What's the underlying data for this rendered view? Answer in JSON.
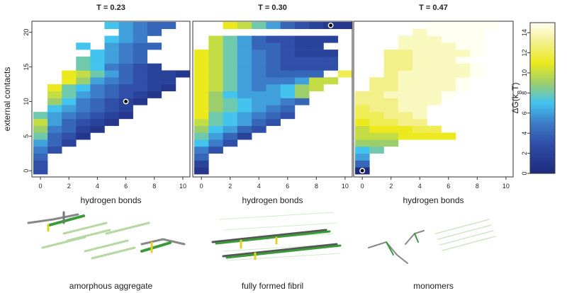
{
  "chart_data": [
    {
      "type": "heatmap",
      "title": "T = 0.23",
      "xlabel": "hydrogen bonds",
      "ylabel": "external contacts",
      "caption": "amorphous aggregate",
      "x": [
        0,
        1,
        2,
        3,
        4,
        5,
        6,
        7,
        8,
        9,
        10
      ],
      "y": [
        0,
        1,
        2,
        3,
        4,
        5,
        6,
        7,
        8,
        9,
        10,
        11,
        12,
        13,
        14,
        15,
        16,
        17,
        18,
        19,
        20,
        21
      ],
      "xlim": [
        -0.6,
        10.5
      ],
      "ylim": [
        -0.9,
        21.6
      ],
      "xticks": [
        0,
        2,
        4,
        6,
        8,
        10
      ],
      "yticks": [
        0,
        5,
        10,
        15,
        20
      ],
      "marker": [
        6,
        10
      ],
      "z": [
        [
          3,
          null,
          null,
          null,
          null,
          null,
          null,
          null,
          null,
          null,
          null
        ],
        [
          3,
          null,
          null,
          null,
          null,
          null,
          null,
          null,
          null,
          null,
          null
        ],
        [
          4,
          null,
          null,
          null,
          null,
          null,
          null,
          null,
          null,
          null,
          null
        ],
        [
          5,
          3,
          null,
          null,
          null,
          null,
          null,
          null,
          null,
          null,
          null
        ],
        [
          6,
          4,
          2,
          null,
          null,
          null,
          null,
          null,
          null,
          null,
          null
        ],
        [
          8,
          4,
          3,
          1,
          null,
          null,
          null,
          null,
          null,
          null,
          null
        ],
        [
          9,
          5,
          4,
          2,
          1,
          null,
          null,
          null,
          null,
          null,
          null
        ],
        [
          10,
          6,
          4,
          3,
          2,
          1,
          null,
          null,
          null,
          null,
          null
        ],
        [
          8,
          6,
          5,
          4,
          3,
          2,
          1,
          null,
          null,
          null,
          null
        ],
        [
          null,
          7,
          6,
          5,
          4,
          3,
          2,
          null,
          null,
          null,
          null
        ],
        [
          null,
          9,
          7,
          5,
          4,
          3,
          2,
          1,
          null,
          null,
          null
        ],
        [
          null,
          10,
          8,
          6,
          5,
          4,
          3,
          2,
          1,
          null,
          null
        ],
        [
          null,
          11,
          8,
          7,
          5,
          4,
          3,
          3,
          2,
          1,
          null
        ],
        [
          null,
          null,
          11,
          9,
          6,
          5,
          4,
          3,
          2,
          2,
          null
        ],
        [
          null,
          null,
          11,
          10,
          8,
          6,
          4,
          3,
          2,
          2,
          1
        ],
        [
          null,
          null,
          null,
          8,
          7,
          5,
          4,
          3,
          2,
          null,
          null
        ],
        [
          null,
          null,
          null,
          8,
          7,
          6,
          5,
          4,
          null,
          null,
          null
        ],
        [
          null,
          null,
          null,
          null,
          7,
          6,
          5,
          4,
          null,
          null,
          null
        ],
        [
          null,
          null,
          null,
          7,
          null,
          6,
          5,
          4,
          4,
          null,
          null
        ],
        [
          null,
          null,
          null,
          null,
          null,
          7,
          6,
          5,
          null,
          null,
          null
        ],
        [
          null,
          null,
          null,
          null,
          null,
          null,
          6,
          5,
          4,
          null,
          null
        ],
        [
          null,
          null,
          null,
          null,
          null,
          7,
          6,
          5,
          4,
          4,
          null
        ]
      ]
    },
    {
      "type": "heatmap",
      "title": "T = 0.30",
      "xlabel": "hydrogen bonds",
      "caption": "fully formed fibril",
      "x": [
        0,
        1,
        2,
        3,
        4,
        5,
        6,
        7,
        8,
        9,
        10
      ],
      "y": [
        0,
        1,
        2,
        3,
        4,
        5,
        6,
        7,
        8,
        9,
        10,
        11,
        12,
        13,
        14,
        15,
        16,
        17,
        18,
        19,
        20,
        21
      ],
      "xlim": [
        -0.6,
        10.5
      ],
      "ylim": [
        -0.9,
        21.6
      ],
      "xticks": [
        0,
        2,
        4,
        6,
        8,
        10
      ],
      "marker": [
        9,
        21
      ],
      "z": [
        [
          1,
          null,
          null,
          null,
          null,
          null,
          null,
          null,
          null,
          null,
          null
        ],
        [
          2,
          null,
          null,
          null,
          null,
          null,
          null,
          null,
          null,
          null,
          null
        ],
        [
          4,
          null,
          null,
          null,
          null,
          null,
          null,
          null,
          null,
          null,
          null
        ],
        [
          5,
          3,
          null,
          null,
          null,
          null,
          null,
          null,
          null,
          null,
          null
        ],
        [
          7,
          5,
          3,
          null,
          null,
          null,
          null,
          null,
          null,
          null,
          null
        ],
        [
          8,
          6,
          4,
          2,
          null,
          null,
          null,
          null,
          null,
          null,
          null
        ],
        [
          9,
          7,
          6,
          4,
          3,
          null,
          null,
          null,
          null,
          null,
          null
        ],
        [
          10,
          8,
          7,
          6,
          4,
          3,
          null,
          null,
          null,
          null,
          null
        ],
        [
          11,
          8,
          7,
          6,
          5,
          4,
          3,
          null,
          null,
          null,
          null
        ],
        [
          11,
          9,
          8,
          7,
          6,
          5,
          4,
          null,
          null,
          null,
          null
        ],
        [
          11,
          9,
          8,
          7,
          6,
          6,
          5,
          4,
          null,
          null,
          null
        ],
        [
          11,
          9,
          7,
          6,
          6,
          6,
          7,
          9,
          null,
          null,
          null
        ],
        [
          11,
          10,
          8,
          6,
          5,
          6,
          7,
          9,
          10,
          null,
          null
        ],
        [
          11,
          10,
          8,
          6,
          5,
          5,
          5,
          6,
          10,
          10,
          null
        ],
        [
          11,
          10,
          8,
          6,
          5,
          4,
          4,
          4,
          4,
          null,
          12
        ],
        [
          11,
          10,
          8,
          6,
          5,
          4,
          3,
          3,
          3,
          3,
          null
        ],
        [
          11,
          10,
          8,
          6,
          5,
          4,
          3,
          3,
          3,
          3,
          null
        ],
        [
          11,
          10,
          8,
          6,
          5,
          4,
          3,
          2,
          2,
          2,
          null
        ],
        [
          null,
          10,
          8,
          6,
          4,
          4,
          3,
          2,
          2,
          null,
          null
        ],
        [
          null,
          10,
          8,
          6,
          4,
          3,
          3,
          2,
          2,
          2,
          null
        ],
        [
          null,
          null,
          null,
          null,
          null,
          null,
          null,
          null,
          null,
          null,
          null
        ],
        [
          null,
          null,
          11,
          10,
          8,
          6,
          4,
          3,
          2,
          1,
          1
        ]
      ]
    },
    {
      "type": "heatmap",
      "title": "T = 0.47",
      "xlabel": "hydrogen bonds",
      "caption": "monomers",
      "x": [
        0,
        1,
        2,
        3,
        4,
        5,
        6,
        7,
        8,
        9,
        10
      ],
      "y": [
        0,
        1,
        2,
        3,
        4,
        5,
        6,
        7,
        8,
        9,
        10,
        11,
        12,
        13,
        14,
        15,
        16,
        17,
        18,
        19,
        20,
        21
      ],
      "xlim": [
        -0.6,
        10.5
      ],
      "ylim": [
        -0.9,
        21.6
      ],
      "xticks": [
        0,
        2,
        4,
        6,
        8,
        10
      ],
      "marker": [
        0,
        0
      ],
      "z": [
        [
          0,
          null,
          null,
          null,
          null,
          null,
          null,
          null,
          null,
          null,
          null
        ],
        [
          4,
          null,
          null,
          null,
          null,
          null,
          null,
          null,
          null,
          null,
          null
        ],
        [
          6,
          null,
          null,
          null,
          null,
          null,
          null,
          null,
          null,
          null,
          null
        ],
        [
          7,
          8,
          null,
          null,
          null,
          null,
          null,
          null,
          null,
          null,
          null
        ],
        [
          9,
          9,
          9,
          null,
          null,
          null,
          null,
          null,
          null,
          null,
          null
        ],
        [
          10,
          10,
          10,
          11,
          11,
          11,
          11,
          null,
          null,
          null,
          null
        ],
        [
          10,
          11,
          11,
          11,
          12,
          12,
          null,
          null,
          null,
          null,
          null
        ],
        [
          11,
          12,
          12,
          13,
          13,
          null,
          null,
          null,
          null,
          null,
          null
        ],
        [
          12,
          12,
          13,
          13,
          14,
          null,
          null,
          null,
          null,
          null,
          null
        ],
        [
          12,
          13,
          13,
          14,
          14,
          null,
          null,
          null,
          null,
          null,
          null
        ],
        [
          13,
          13,
          13,
          14,
          14,
          14,
          null,
          null,
          null,
          null,
          null
        ],
        [
          13,
          13,
          14,
          14,
          14,
          14,
          15,
          null,
          null,
          null,
          null
        ],
        [
          null,
          13,
          13,
          14,
          14,
          14,
          14,
          15,
          null,
          null,
          null
        ],
        [
          null,
          13,
          13,
          14,
          14,
          14,
          14,
          15,
          null,
          null,
          null
        ],
        [
          null,
          null,
          13,
          14,
          14,
          14,
          14,
          14,
          15,
          null,
          null
        ],
        [
          null,
          null,
          13,
          13,
          14,
          14,
          14,
          14,
          15,
          null,
          null
        ],
        [
          null,
          null,
          13,
          13,
          14,
          14,
          14,
          15,
          null,
          null,
          null
        ],
        [
          null,
          null,
          13,
          13,
          14,
          14,
          14,
          14,
          15,
          null,
          null
        ],
        [
          null,
          null,
          null,
          14,
          14,
          14,
          14,
          15,
          15,
          null,
          null
        ],
        [
          null,
          null,
          null,
          14,
          14,
          14,
          15,
          15,
          15,
          null,
          null
        ],
        [
          null,
          null,
          null,
          null,
          14,
          15,
          15,
          15,
          15,
          null,
          null
        ],
        [
          null,
          null,
          null,
          null,
          null,
          15,
          15,
          15,
          15,
          15,
          null
        ]
      ]
    }
  ],
  "colorbar": {
    "label": [
      "ΔG(k",
      "B",
      "T)"
    ],
    "lim": [
      0,
      15
    ],
    "ticks": [
      0,
      2,
      4,
      6,
      8,
      10,
      12,
      14
    ],
    "colorscale": [
      [
        0,
        "#1e2b7e"
      ],
      [
        3,
        "#2f4fa8"
      ],
      [
        5,
        "#3d7cc8"
      ],
      [
        7,
        "#42c4ef"
      ],
      [
        9,
        "#9ccf6b"
      ],
      [
        11,
        "#ecea1e"
      ],
      [
        13,
        "#f3f08a"
      ],
      [
        15,
        "#fffff2"
      ]
    ]
  }
}
